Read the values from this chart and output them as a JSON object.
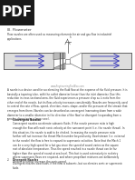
{
  "background_color": "#ffffff",
  "pdf_box_color": "#1a1a1a",
  "pdf_text": "PDF",
  "pdf_text_color": "#ffffff",
  "heading_text": "III. Flowmeter",
  "body_text1": "Flow nozzles are often used as measuring elements for air and gas flow in industrial\napplications.",
  "watermark_text": "www.EngineeringToolBox.com",
  "body_text2": "A nozzle is a device used for accelerating the fluid flow at the expense of the fluid pressure. It is\nbasically a tapering tube, with the outlet diameter lesser than the inlet diameter. Due this\nreduction in cross-sectional area, the fluid experiences a pressure drop as it exits from the\nother end of the nozzle, but its flow velocity increases considerably. Nozzles are frequently used\nto control the rate of flow, speed, direction, mass, shape, and/or the pressure of the stream that\nemerges from them. Nozzles can be described as convergent (narrowing down from a wide\ndiameter to a smaller diameter in the direction of the flow) or divergent (expanding from a\nsmaller diameter to a larger one).",
  "list_item1_num": "1.",
  "list_item1_title": "Convergent Nozzles",
  "list_item1_body": "Convergent nozzles accelerate subsonic fluids. If the nozzle pressure ratio is high\nenough the flow will reach sonic velocity at the narrowest point (i.e. the nozzle throat). In\nthis situation, the nozzle is said to be choked. Increasing the nozzle pressure ratio\nfurther will not increase the throat Mach number beyond unity. Downstream (i.e. external\nto the nozzle) the flow is free to expand to supersonic velocities. Note that the Mach 1\ncan be a very high speed for a hot gas since the speed of sound varies as the square\nroot of absolute temperature. Thus the speed reached in a nozzle throat can be far\nhigher than the speed of sound at sea level. This fact is used extensively in rocketry\nwhere supersonic flows are required, and where propellant mixtures are deliberately\nchosen to further increase the sonic speed.",
  "list_item2_num": "2.",
  "list_item2_title": "Divergent Nozzles",
  "list_item2_body": "Divergent nozzles slow fluids. If the flow is subsonic, but accelerates sonic or supersonic\nfluids.",
  "arrow_color": "#3333bb",
  "line_color": "#555555",
  "nozzle_fill": "#bbbbbb",
  "pipe_fill": "#dddddd"
}
